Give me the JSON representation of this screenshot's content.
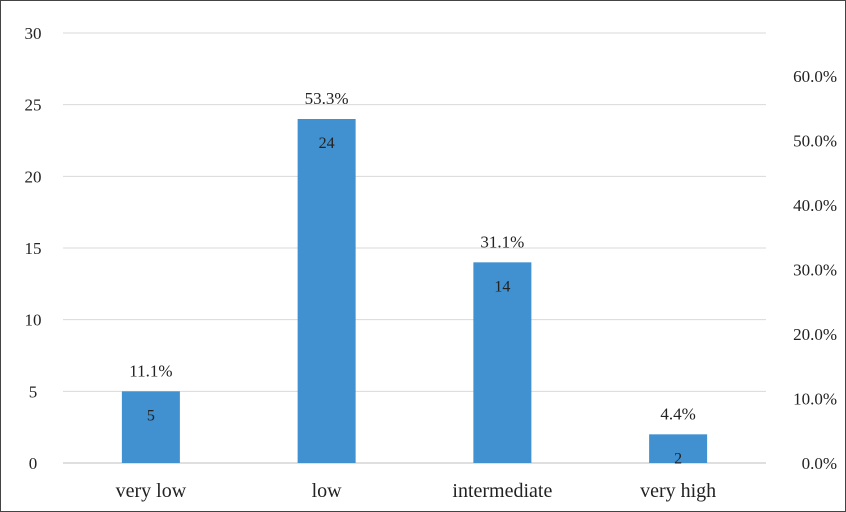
{
  "chart_data": {
    "type": "bar",
    "title": "",
    "xlabel": "",
    "ylabel": "",
    "categories": [
      "very low",
      "low",
      "intermediate",
      "very high"
    ],
    "values": [
      5,
      24,
      14,
      2
    ],
    "percent_labels": [
      "11.1%",
      "53.3%",
      "31.1%",
      "4.4%"
    ],
    "ylim": [
      0,
      30
    ],
    "y_ticks": [
      "0",
      "5",
      "10",
      "15",
      "20",
      "25",
      "30"
    ],
    "y2lim": [
      0,
      0.6667
    ],
    "y2_ticks": [
      "0.0%",
      "10.0%",
      "20.0%",
      "30.0%",
      "40.0%",
      "50.0%",
      "60.0%"
    ],
    "grid": true,
    "bar_color": "#4190CF"
  }
}
